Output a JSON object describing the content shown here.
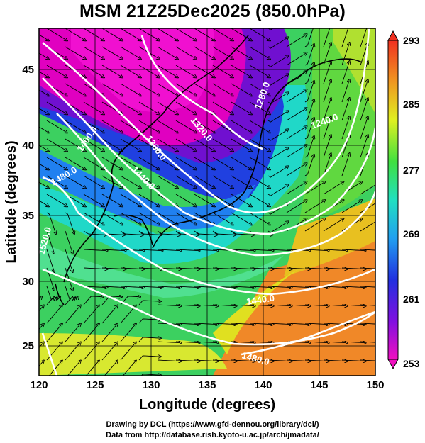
{
  "title": "MSM 21Z25Dec2025 (850.0hPa)",
  "axes": {
    "xlabel": "Longitude (degrees)",
    "ylabel": "Latitude  (degrees)",
    "xticks": [
      "120",
      "125",
      "130",
      "135",
      "140",
      "145",
      "150"
    ],
    "yticks": [
      "25",
      "30",
      "35",
      "40",
      "45"
    ],
    "xlim": [
      120,
      150
    ],
    "ylim": [
      22.4,
      47.6
    ]
  },
  "colorbar": {
    "labels": [
      "293",
      "285",
      "277",
      "269",
      "261",
      "253"
    ],
    "range": [
      253,
      293
    ],
    "units_hint": "temperature (K)"
  },
  "contour_labels": [
    "1320.0",
    "1280.0",
    "1360.0",
    "1240.0",
    "1400.0",
    "1440.0",
    "1480.0",
    "1520.0",
    "1440.0",
    "1480.0"
  ],
  "credits": {
    "line1": "Drawing by DCL (https://www.gfd-dennou.org/library/dcl/)",
    "line2": "Data from http://database.rish.kyoto-u.ac.jp/arch/jmadata/"
  },
  "colors": {
    "magenta": "#e000c0",
    "purple": "#7010d0",
    "blue": "#2040e0",
    "cyan": "#20d8d8",
    "green": "#40d040",
    "yellow": "#f0f020",
    "orange": "#f07820",
    "red": "#e83018"
  }
}
